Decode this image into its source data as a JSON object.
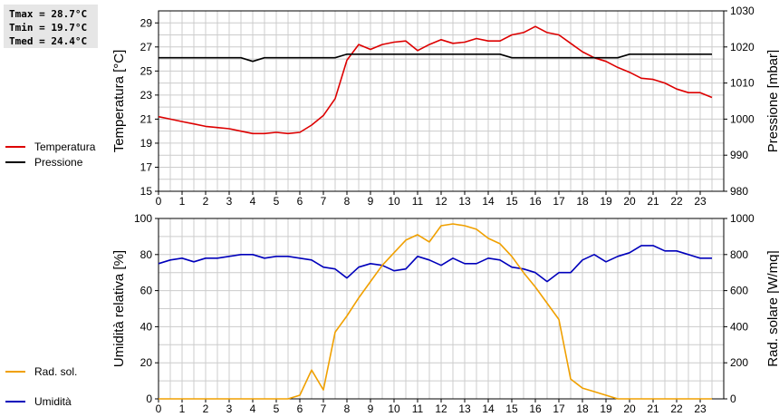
{
  "stats": {
    "tmax": "Tmax = 28.7°C",
    "tmin": "Tmin = 19.7°C",
    "tmed": "Tmed = 24.4°C"
  },
  "colors": {
    "temperature": "#dd0000",
    "pressure": "#000000",
    "humidity": "#0000bb",
    "radiation": "#f0a000",
    "grid": "#cccccc"
  },
  "chart_data": [
    {
      "type": "line",
      "title": "",
      "xlabel": "",
      "x_ticks": [
        "0",
        "1",
        "2",
        "3",
        "4",
        "5",
        "6",
        "7",
        "8",
        "9",
        "10",
        "11",
        "12",
        "13",
        "14",
        "15",
        "16",
        "17",
        "18",
        "19",
        "20",
        "21",
        "22",
        "23"
      ],
      "xlim": [
        0,
        24
      ],
      "grid": true,
      "legend_placement": "left",
      "y_left": {
        "label": "Temperatura [°C]",
        "ylim": [
          15,
          30
        ],
        "ticks": [
          "15",
          "17",
          "19",
          "21",
          "23",
          "25",
          "27",
          "29"
        ]
      },
      "y_right": {
        "label": "Pressione [mbar]",
        "ylim": [
          980,
          1030
        ],
        "ticks": [
          "980",
          "990",
          "1000",
          "1010",
          "1020",
          "1030"
        ]
      },
      "series": [
        {
          "name": "Temperatura",
          "axis": "left",
          "color": "#dd0000",
          "x": [
            0,
            0.5,
            1,
            1.5,
            2,
            2.5,
            3,
            3.5,
            4,
            4.5,
            5,
            5.5,
            6,
            6.5,
            7,
            7.5,
            8,
            8.5,
            9,
            9.5,
            10,
            10.5,
            11,
            11.5,
            12,
            12.5,
            13,
            13.5,
            14,
            14.5,
            15,
            15.5,
            16,
            16.5,
            17,
            17.5,
            18,
            18.5,
            19,
            19.5,
            20,
            20.5,
            21,
            21.5,
            22,
            22.5,
            23,
            23.5
          ],
          "y": [
            21.2,
            21.0,
            20.8,
            20.6,
            20.4,
            20.3,
            20.2,
            20.0,
            19.8,
            19.8,
            19.9,
            19.8,
            19.9,
            20.5,
            21.3,
            22.7,
            25.9,
            27.2,
            26.8,
            27.2,
            27.4,
            27.5,
            26.7,
            27.2,
            27.6,
            27.3,
            27.4,
            27.7,
            27.5,
            27.5,
            28.0,
            28.2,
            28.7,
            28.2,
            28.0,
            27.3,
            26.6,
            26.1,
            25.8,
            25.3,
            24.9,
            24.4,
            24.3,
            24.0,
            23.5,
            23.2,
            23.2,
            22.8
          ]
        },
        {
          "name": "Pressione",
          "axis": "right",
          "color": "#000000",
          "x": [
            0,
            0.5,
            1,
            1.5,
            2,
            2.5,
            3,
            3.5,
            4,
            4.5,
            5,
            5.5,
            6,
            6.5,
            7,
            7.5,
            8,
            8.5,
            9,
            9.5,
            10,
            10.5,
            11,
            11.5,
            12,
            12.5,
            13,
            13.5,
            14,
            14.5,
            15,
            15.5,
            16,
            16.5,
            17,
            17.5,
            18,
            18.5,
            19,
            19.5,
            20,
            20.5,
            21,
            21.5,
            22,
            22.5,
            23,
            23.5
          ],
          "y": [
            1017,
            1017,
            1017,
            1017,
            1017,
            1017,
            1017,
            1017,
            1016,
            1017,
            1017,
            1017,
            1017,
            1017,
            1017,
            1017,
            1018,
            1018,
            1018,
            1018,
            1018,
            1018,
            1018,
            1018,
            1018,
            1018,
            1018,
            1018,
            1018,
            1018,
            1017,
            1017,
            1017,
            1017,
            1017,
            1017,
            1017,
            1017,
            1017,
            1017,
            1018,
            1018,
            1018,
            1018,
            1018,
            1018,
            1018,
            1018
          ]
        }
      ]
    },
    {
      "type": "line",
      "title": "",
      "xlabel": "",
      "x_ticks": [
        "0",
        "1",
        "2",
        "3",
        "4",
        "5",
        "6",
        "7",
        "8",
        "9",
        "10",
        "11",
        "12",
        "13",
        "14",
        "15",
        "16",
        "17",
        "18",
        "19",
        "20",
        "21",
        "22",
        "23"
      ],
      "xlim": [
        0,
        24
      ],
      "grid": true,
      "legend_placement": "left",
      "y_left": {
        "label": "Umidità relativa [%]",
        "ylim": [
          0,
          100
        ],
        "ticks": [
          "0",
          "20",
          "40",
          "60",
          "80",
          "100"
        ]
      },
      "y_right": {
        "label": "Rad. solare [W/mq]",
        "ylim": [
          0,
          1000
        ],
        "ticks": [
          "0",
          "200",
          "400",
          "600",
          "800",
          "1000"
        ]
      },
      "series": [
        {
          "name": "Umidità",
          "axis": "left",
          "color": "#0000bb",
          "x": [
            0,
            0.5,
            1,
            1.5,
            2,
            2.5,
            3,
            3.5,
            4,
            4.5,
            5,
            5.5,
            6,
            6.5,
            7,
            7.5,
            8,
            8.5,
            9,
            9.5,
            10,
            10.5,
            11,
            11.5,
            12,
            12.5,
            13,
            13.5,
            14,
            14.5,
            15,
            15.5,
            16,
            16.5,
            17,
            17.5,
            18,
            18.5,
            19,
            19.5,
            20,
            20.5,
            21,
            21.5,
            22,
            22.5,
            23,
            23.5
          ],
          "y": [
            75,
            77,
            78,
            76,
            78,
            78,
            79,
            80,
            80,
            78,
            79,
            79,
            78,
            77,
            73,
            72,
            67,
            73,
            75,
            74,
            71,
            72,
            79,
            77,
            74,
            78,
            75,
            75,
            78,
            77,
            73,
            72,
            70,
            65,
            70,
            70,
            77,
            80,
            76,
            79,
            81,
            85,
            85,
            82,
            82,
            80,
            78,
            78
          ]
        },
        {
          "name": "Rad. sol.",
          "axis": "right",
          "color": "#f0a000",
          "x": [
            0,
            0.5,
            1,
            1.5,
            2,
            2.5,
            3,
            3.5,
            4,
            4.5,
            5,
            5.5,
            6,
            6.5,
            7,
            7.5,
            8,
            8.5,
            9,
            9.5,
            10,
            10.5,
            11,
            11.5,
            12,
            12.5,
            13,
            13.5,
            14,
            14.5,
            15,
            15.5,
            16,
            16.5,
            17,
            17.5,
            18,
            18.5,
            19,
            19.5,
            20,
            20.5,
            21,
            21.5,
            22,
            22.5,
            23,
            23.5
          ],
          "y": [
            0,
            0,
            0,
            0,
            0,
            0,
            0,
            0,
            0,
            0,
            0,
            0,
            20,
            160,
            50,
            370,
            460,
            560,
            650,
            740,
            810,
            880,
            910,
            870,
            960,
            970,
            960,
            940,
            890,
            860,
            790,
            700,
            620,
            530,
            440,
            110,
            60,
            40,
            20,
            0,
            0,
            0,
            0,
            0,
            0,
            0,
            0,
            0
          ]
        }
      ]
    }
  ]
}
